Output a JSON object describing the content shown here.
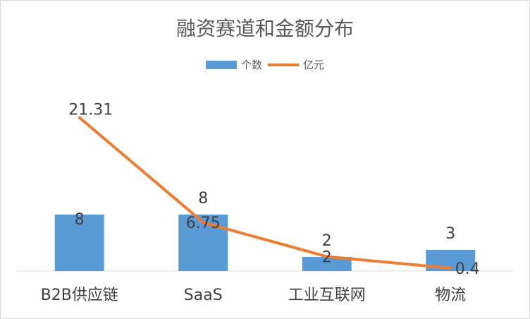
{
  "chart_data": {
    "type": "bar",
    "title": "融资赛道和金额分布",
    "categories": [
      "B2B供应链",
      "SaaS",
      "工业互联网",
      "物流"
    ],
    "series": [
      {
        "name": "个数",
        "kind": "bar",
        "color": "#5b9bd5",
        "values": [
          8,
          8,
          2,
          3
        ]
      },
      {
        "name": "亿元",
        "kind": "line",
        "color": "#ed7d31",
        "values": [
          21.31,
          6.75,
          2,
          0.4
        ]
      }
    ],
    "legend_position": "top-center",
    "grid": false
  }
}
